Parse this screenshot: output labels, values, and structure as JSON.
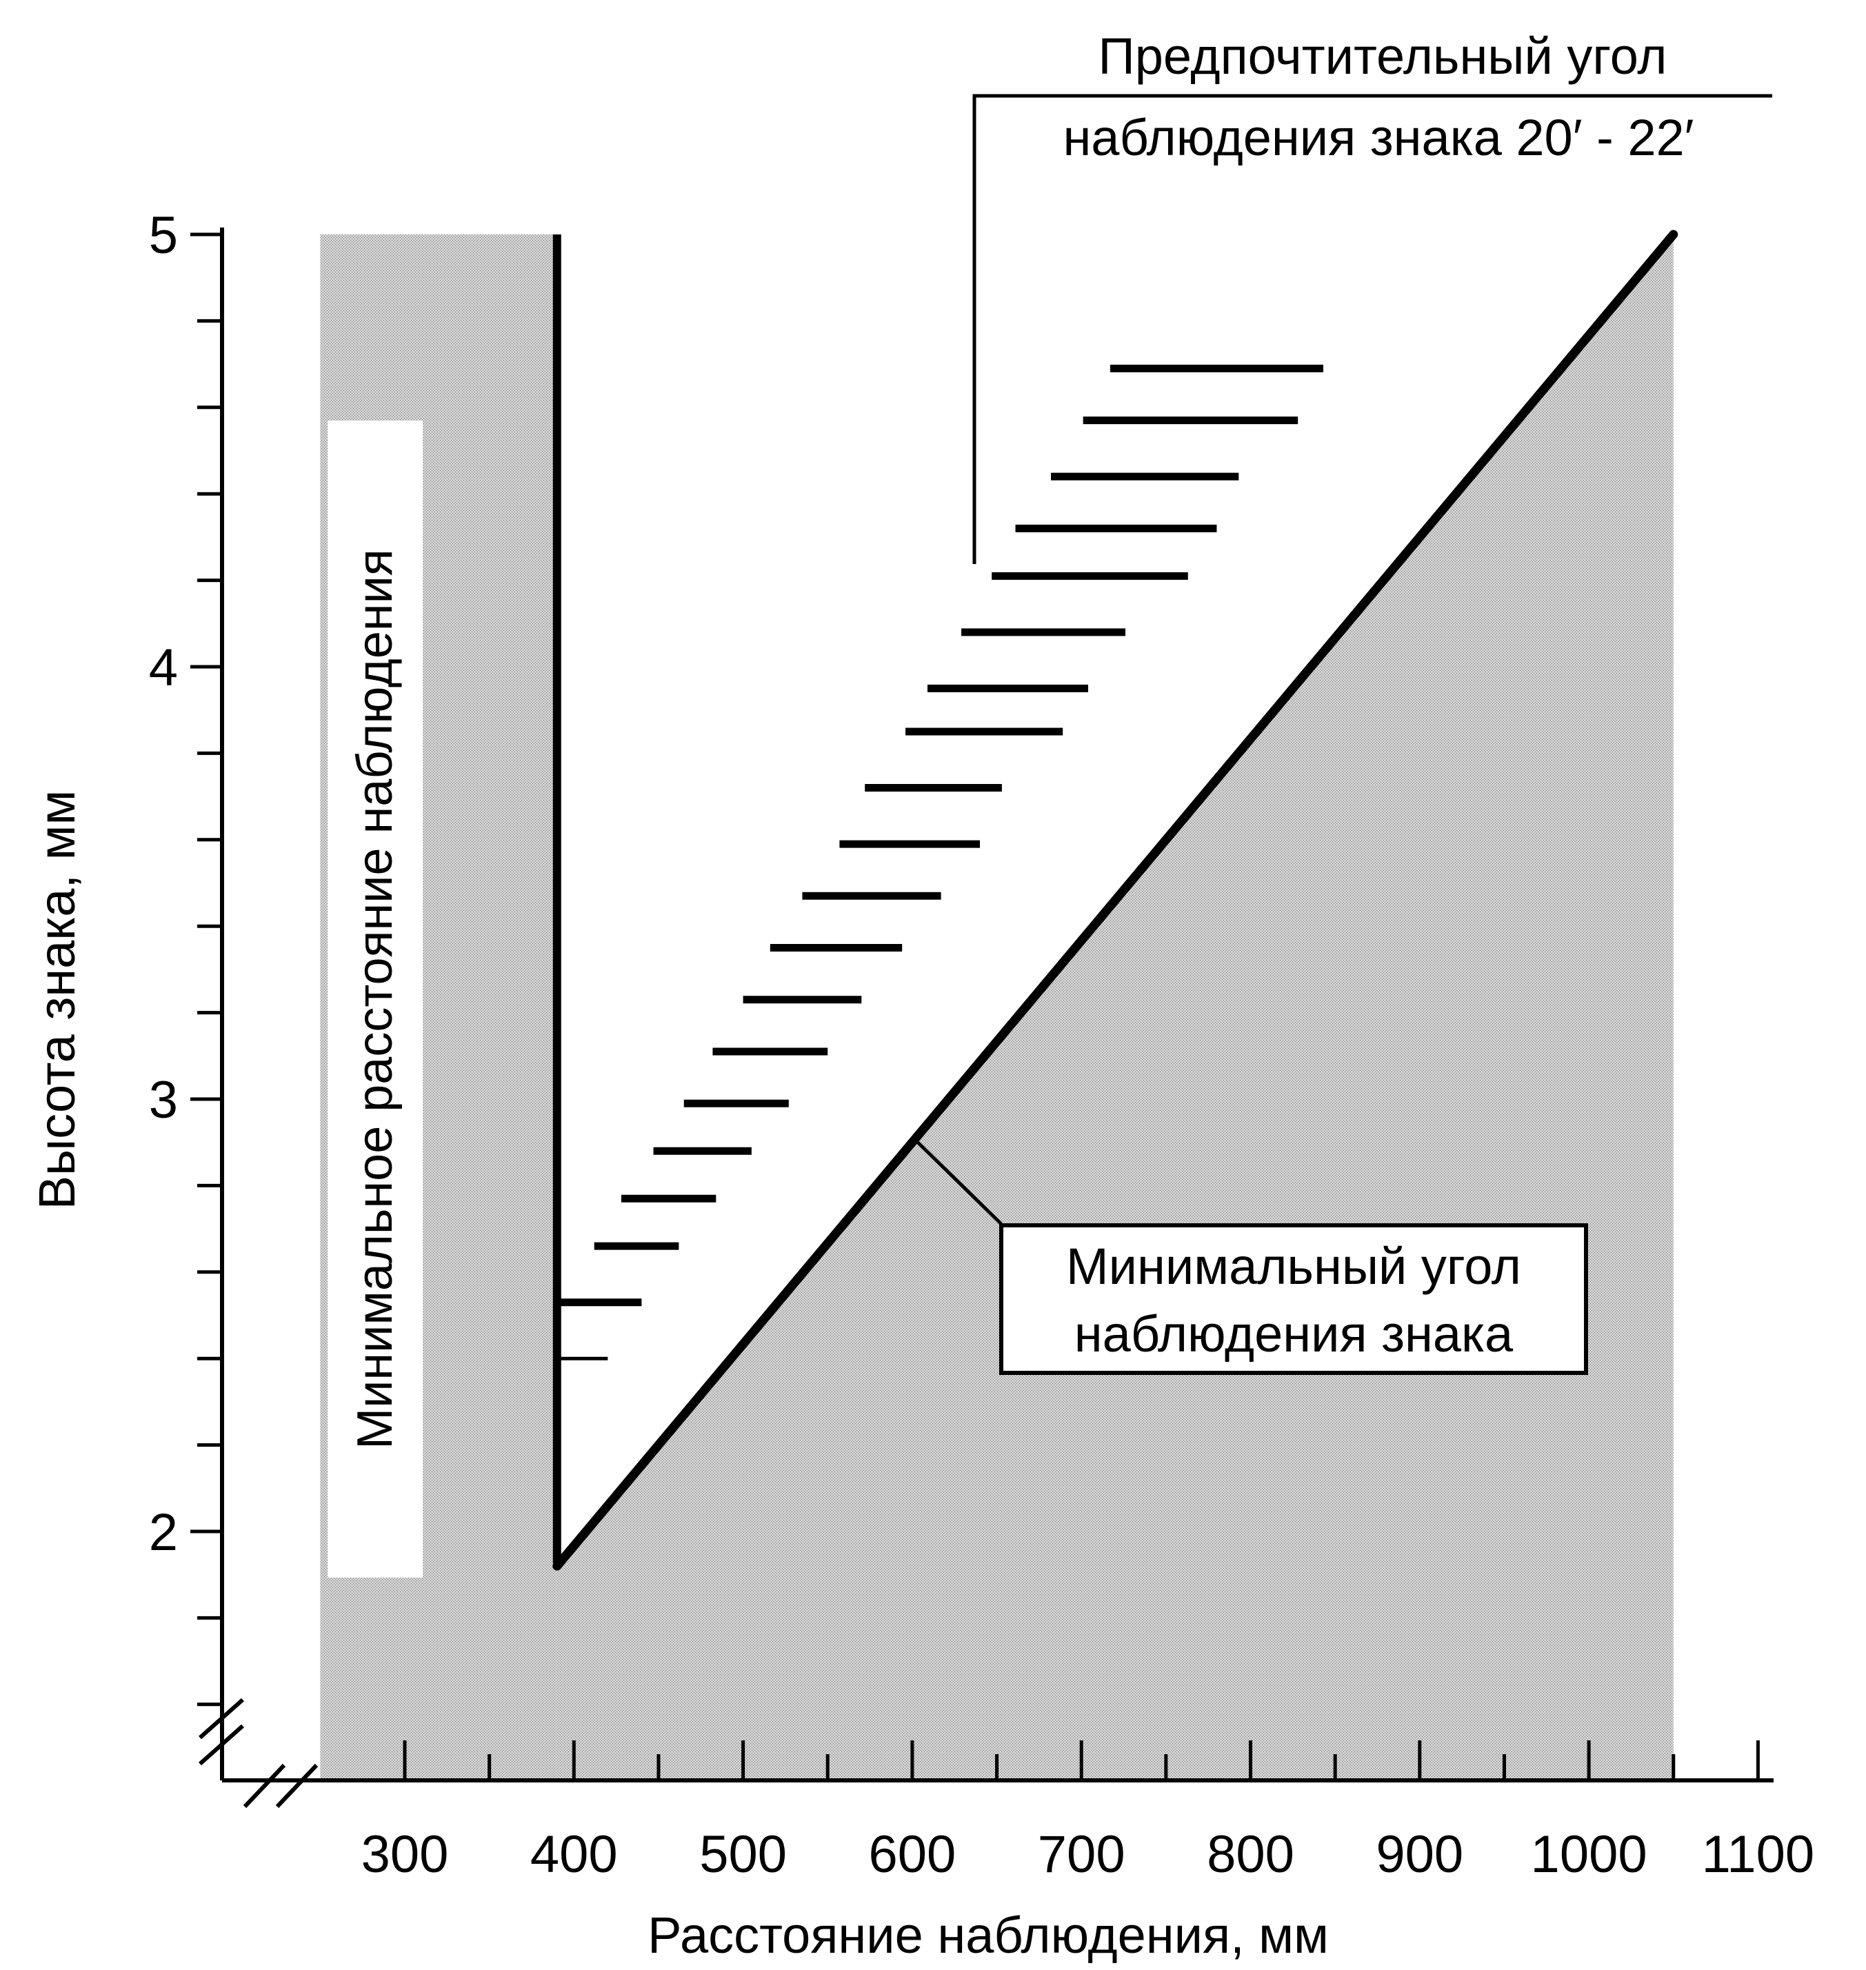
{
  "chart_data": {
    "type": "line",
    "title": "",
    "xlabel": "Расстояние наблюдения, мм",
    "ylabel": "Высота знака, мм",
    "xlim": [
      250,
      1100
    ],
    "ylim": [
      1.6,
      5.0
    ],
    "x_ticks": [
      300,
      400,
      500,
      600,
      700,
      800,
      900,
      1000,
      1100
    ],
    "y_ticks": [
      2,
      3,
      4,
      5
    ],
    "axis_breaks": [
      "x",
      "y"
    ],
    "grid": false,
    "legend": "none",
    "series": [
      {
        "style": "vertical-line",
        "x": [
          390,
          390
        ],
        "y": [
          1.92,
          5.0
        ]
      },
      {
        "style": "diagonal-line",
        "x": [
          390,
          1050
        ],
        "y": [
          1.92,
          5.0
        ]
      }
    ],
    "preferred_band_segments": [
      {
        "y": 2.4,
        "x1": 390,
        "x2": 420
      },
      {
        "y": 2.53,
        "x1": 390,
        "x2": 440
      },
      {
        "y": 2.66,
        "x1": 412,
        "x2": 462
      },
      {
        "y": 2.77,
        "x1": 428,
        "x2": 484
      },
      {
        "y": 2.88,
        "x1": 447,
        "x2": 505
      },
      {
        "y": 2.99,
        "x1": 465,
        "x2": 527
      },
      {
        "y": 3.11,
        "x1": 482,
        "x2": 550
      },
      {
        "y": 3.23,
        "x1": 500,
        "x2": 570
      },
      {
        "y": 3.35,
        "x1": 516,
        "x2": 594
      },
      {
        "y": 3.47,
        "x1": 535,
        "x2": 617
      },
      {
        "y": 3.59,
        "x1": 557,
        "x2": 640
      },
      {
        "y": 3.72,
        "x1": 572,
        "x2": 653
      },
      {
        "y": 3.85,
        "x1": 596,
        "x2": 689
      },
      {
        "y": 3.95,
        "x1": 609,
        "x2": 704
      },
      {
        "y": 4.08,
        "x1": 629,
        "x2": 726
      },
      {
        "y": 4.21,
        "x1": 647,
        "x2": 763
      },
      {
        "y": 4.32,
        "x1": 661,
        "x2": 780
      },
      {
        "y": 4.44,
        "x1": 682,
        "x2": 793
      },
      {
        "y": 4.57,
        "x1": 701,
        "x2": 828
      },
      {
        "y": 4.69,
        "x1": 717,
        "x2": 843
      }
    ],
    "annotations": [
      {
        "id": "vertical",
        "text": "Минимальное расстояние наблюдения"
      },
      {
        "id": "min_angle",
        "text_lines": [
          "Минимальный угол",
          "наблюдения знака"
        ]
      },
      {
        "id": "pref_angle",
        "text_lines": [
          "Предпочтительный угол",
          "наблюдения знака 20′ - 22′"
        ]
      }
    ]
  }
}
